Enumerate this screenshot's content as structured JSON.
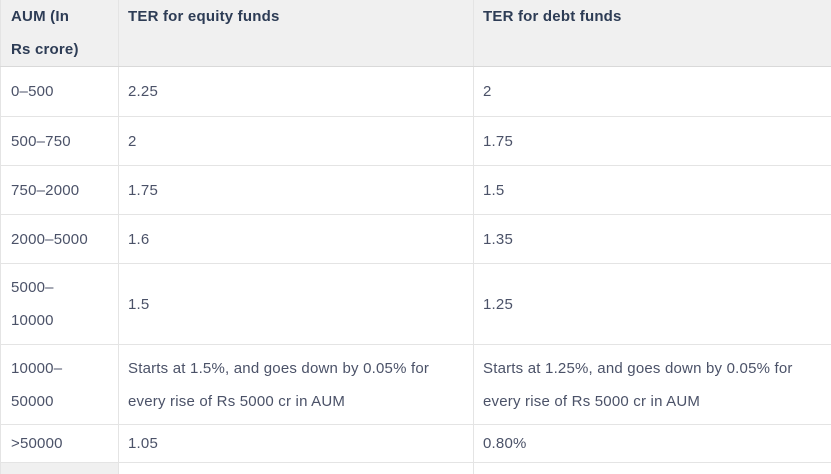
{
  "table": {
    "header": {
      "aum": "AUM (In Rs crore)",
      "equity": "TER for equity funds",
      "debt": "TER for debt funds"
    },
    "rows": [
      {
        "aum": "0–500",
        "equity": "2.25",
        "debt": "2"
      },
      {
        "aum": "500–750",
        "equity": "2",
        "debt": "1.75"
      },
      {
        "aum": "750–2000",
        "equity": "1.75",
        "debt": "1.5"
      },
      {
        "aum": "2000–5000",
        "equity": "1.6",
        "debt": "1.35"
      },
      {
        "aum": "5000–10000",
        "equity": "1.5",
        "debt": "1.25"
      },
      {
        "aum": "10000–50000",
        "equity": "Starts at 1.5%, and goes down by 0.05% for every rise of Rs 5000 cr in AUM",
        "debt": "Starts at 1.25%, and goes down by 0.05% for every rise of Rs 5000 cr in AUM"
      },
      {
        "aum": ">50000",
        "equity": "1.05",
        "debt": "0.80%"
      }
    ]
  },
  "colors": {
    "header_background": "#f0f0f0",
    "header_text": "#2d3c55",
    "body_text": "#4b5268",
    "grid_border": "#e4e4e4"
  }
}
